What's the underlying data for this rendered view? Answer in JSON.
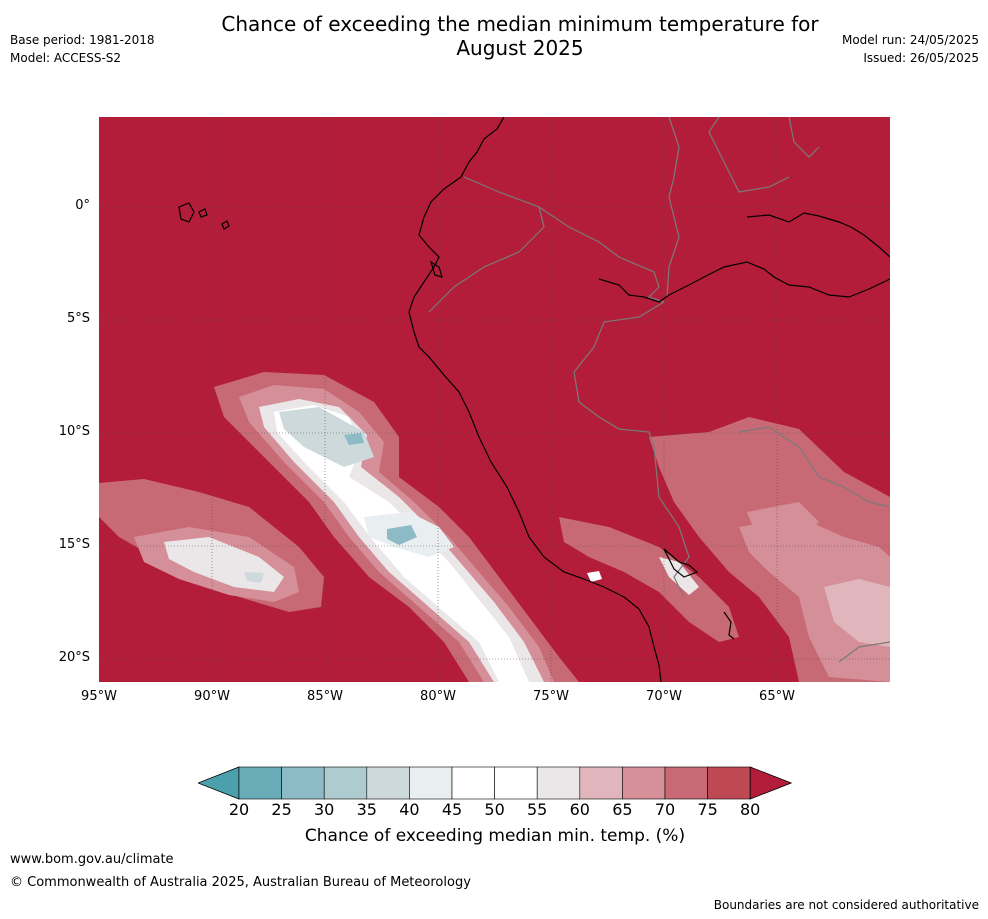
{
  "title_line1": "Chance of exceeding the median minimum temperature for",
  "title_line2": "August 2025",
  "base_period": "Base period: 1981-2018",
  "model": "Model: ACCESS-S2",
  "model_run": "Model run: 24/05/2025",
  "issued": "Issued: 26/05/2025",
  "lat_labels": [
    "0°",
    "5°S",
    "10°S",
    "15°S",
    "20°S"
  ],
  "lon_labels": [
    "95°W",
    "90°W",
    "85°W",
    "80°W",
    "75°W",
    "70°W",
    "65°W"
  ],
  "colorbar": {
    "ticks": [
      "20",
      "25",
      "30",
      "35",
      "40",
      "45",
      "50",
      "55",
      "60",
      "65",
      "70",
      "75",
      "80"
    ],
    "colors": [
      "#4aa1ab",
      "#6aacb8",
      "#8cbbc5",
      "#aecbd0",
      "#cdd9db",
      "#e9eff1",
      "#ffffff",
      "#ffffff",
      "#ebe7e8",
      "#e0b6bc",
      "#d58f98",
      "#c86a76",
      "#bf4855",
      "#b31d3a"
    ],
    "label": "Chance of exceeding median min. temp. (%)"
  },
  "colors": {
    "dominant": "#b31d3a",
    "coast": "#000000",
    "borders": "#7a7a7a"
  },
  "footer": {
    "url": "www.bom.gov.au/climate",
    "copyright": "© Commonwealth of Australia 2025, Australian Bureau of Meteorology",
    "disclaimer": "Boundaries are not considered authoritative"
  }
}
